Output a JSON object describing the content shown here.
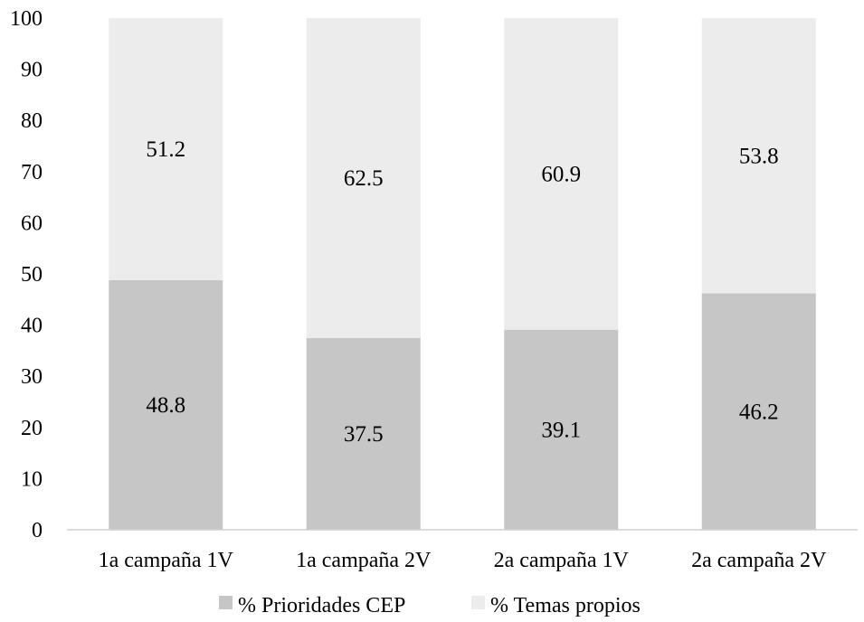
{
  "chart_data": {
    "type": "bar",
    "stacked": true,
    "title": "",
    "xlabel": "",
    "ylabel": "",
    "ylim": [
      0,
      100
    ],
    "yticks": [
      "0",
      "10",
      "20",
      "30",
      "40",
      "50",
      "60",
      "70",
      "80",
      "90",
      "100"
    ],
    "grid": false,
    "legend_position": "bottom",
    "categories": [
      "1a campaña 1V",
      "1a campaña 2V",
      "2a campaña 1V",
      "2a campaña 2V"
    ],
    "series": [
      {
        "name": "% Prioridades CEP",
        "values": [
          48.8,
          37.5,
          39.1,
          46.2
        ],
        "labels": [
          "48.8",
          "37.5",
          "39.1",
          "46.2"
        ],
        "color": "#c6c6c6"
      },
      {
        "name": "% Temas propios",
        "values": [
          51.2,
          62.5,
          60.9,
          53.8
        ],
        "labels": [
          "51.2",
          "62.5",
          "60.9",
          "53.8"
        ],
        "color": "#ececec"
      }
    ]
  }
}
